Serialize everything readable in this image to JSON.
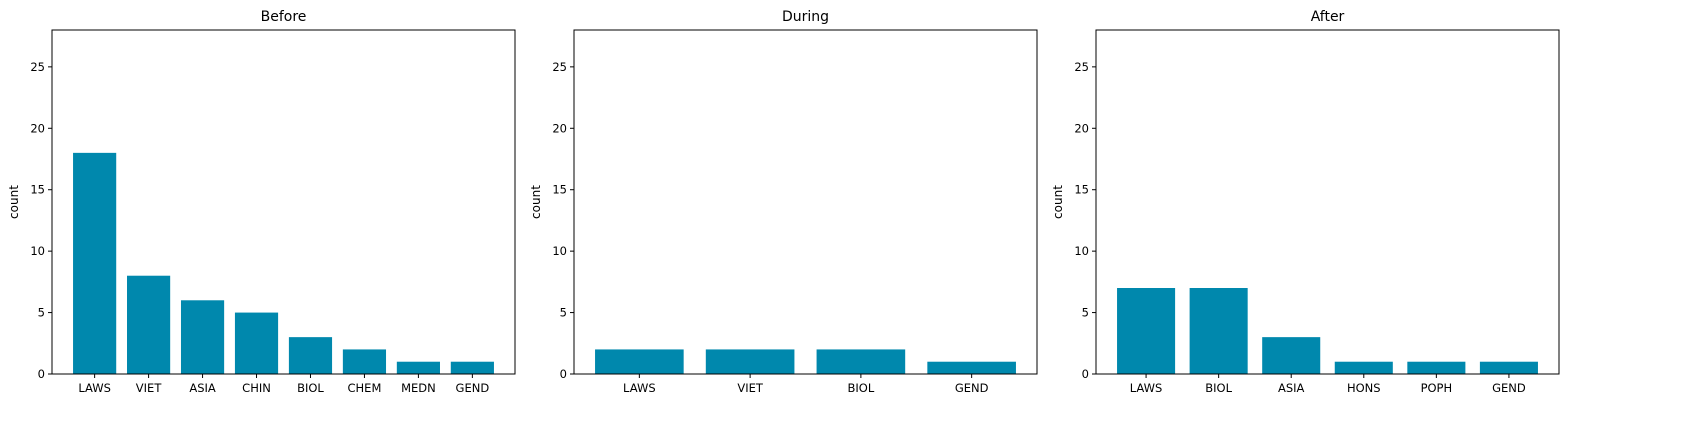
{
  "chart_data": [
    {
      "type": "bar",
      "title": "Before",
      "xlabel": "",
      "ylabel": "count",
      "ylim": [
        0,
        28
      ],
      "yticks": [
        0,
        5,
        10,
        15,
        20,
        25
      ],
      "categories": [
        "LAWS",
        "VIET",
        "ASIA",
        "CHIN",
        "BIOL",
        "CHEM",
        "MEDN",
        "GEND"
      ],
      "values": [
        18,
        8,
        6,
        5,
        3,
        2,
        1,
        1
      ],
      "color": "#0088ad",
      "grid": false
    },
    {
      "type": "bar",
      "title": "During",
      "xlabel": "",
      "ylabel": "count",
      "ylim": [
        0,
        28
      ],
      "yticks": [
        0,
        5,
        10,
        15,
        20,
        25
      ],
      "categories": [
        "LAWS",
        "VIET",
        "BIOL",
        "GEND"
      ],
      "values": [
        2,
        2,
        2,
        1
      ],
      "color": "#0088ad",
      "grid": false
    },
    {
      "type": "bar",
      "title": "After",
      "xlabel": "",
      "ylabel": "count",
      "ylim": [
        0,
        28
      ],
      "yticks": [
        0,
        5,
        10,
        15,
        20,
        25
      ],
      "categories": [
        "LAWS",
        "BIOL",
        "ASIA",
        "HONS",
        "POPH",
        "GEND"
      ],
      "values": [
        7,
        7,
        3,
        1,
        1,
        1
      ],
      "color": "#0088ad",
      "grid": false
    }
  ]
}
